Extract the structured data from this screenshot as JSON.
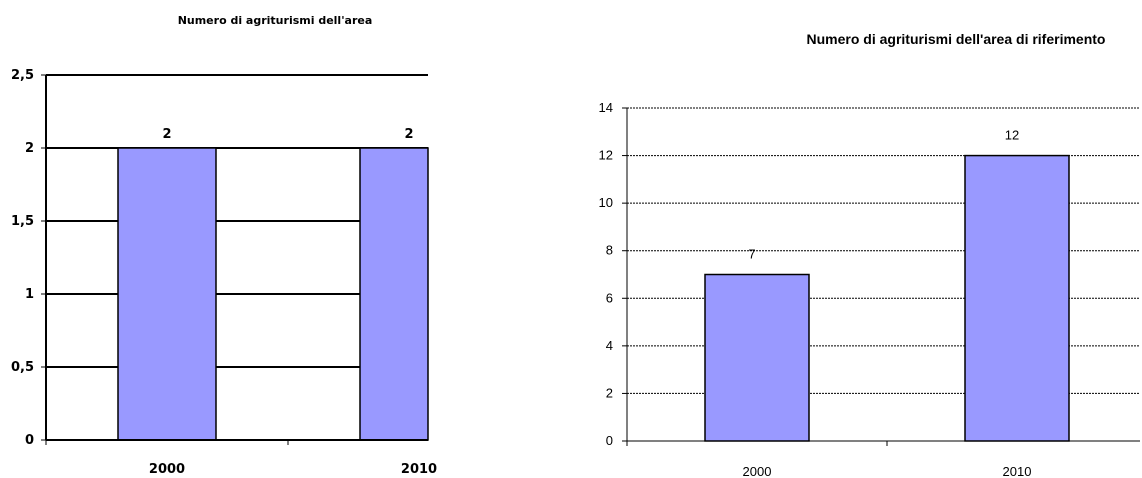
{
  "chart_data": [
    {
      "type": "bar",
      "title": "Numero di agriturismi dell'area",
      "categories": [
        "2000",
        "2010"
      ],
      "values": [
        2,
        2
      ],
      "ylim": [
        0,
        2.5
      ],
      "yticks": [
        "0",
        "0,5",
        "1",
        "1,5",
        "2",
        "2,5"
      ],
      "data_labels": [
        "2",
        "2"
      ],
      "grid": true,
      "bar_color": "#9999ff"
    },
    {
      "type": "bar",
      "title": "Numero di agriturismi dell'area di riferimento",
      "categories": [
        "2000",
        "2010"
      ],
      "values": [
        7,
        12
      ],
      "ylim": [
        0,
        14
      ],
      "yticks": [
        "0",
        "2",
        "4",
        "6",
        "8",
        "10",
        "12",
        "14"
      ],
      "data_labels": [
        "7",
        "12"
      ],
      "grid": true,
      "bar_color": "#9999ff"
    }
  ]
}
